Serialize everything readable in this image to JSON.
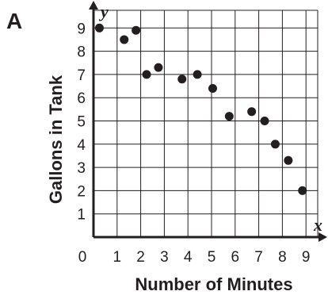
{
  "panel_label": "A",
  "chart_data": {
    "type": "scatter",
    "title": "",
    "xlabel": "Number of Minutes",
    "ylabel": "Gallons in Tank",
    "x_axis_letter": "x",
    "y_axis_letter": "y",
    "xlim": [
      0,
      9.5
    ],
    "ylim": [
      0,
      9.7
    ],
    "grid": true,
    "x_ticks": [
      "0",
      "1",
      "2",
      "3",
      "4",
      "5",
      "6",
      "7",
      "8",
      "9"
    ],
    "y_ticks": [
      "1",
      "2",
      "3",
      "4",
      "5",
      "6",
      "7",
      "8",
      "9"
    ],
    "points": [
      {
        "x": 0.25,
        "y": 9.0
      },
      {
        "x": 1.3,
        "y": 8.5
      },
      {
        "x": 1.8,
        "y": 8.9
      },
      {
        "x": 2.25,
        "y": 7.0
      },
      {
        "x": 2.75,
        "y": 7.3
      },
      {
        "x": 3.75,
        "y": 6.8
      },
      {
        "x": 4.4,
        "y": 7.0
      },
      {
        "x": 5.05,
        "y": 6.4
      },
      {
        "x": 5.75,
        "y": 5.2
      },
      {
        "x": 6.7,
        "y": 5.4
      },
      {
        "x": 7.25,
        "y": 5.0
      },
      {
        "x": 7.7,
        "y": 4.0
      },
      {
        "x": 8.25,
        "y": 3.3
      },
      {
        "x": 8.85,
        "y": 2.0
      }
    ],
    "colors": {
      "ink": "#231f20"
    }
  }
}
